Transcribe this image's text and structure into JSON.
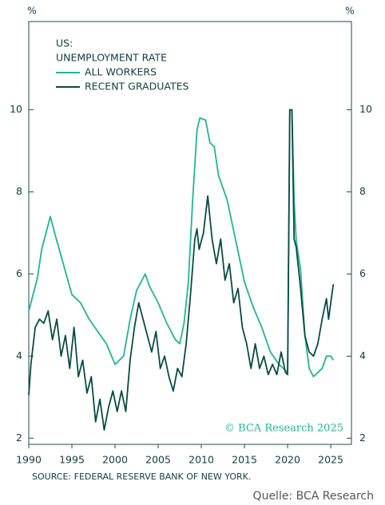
{
  "chart_data": {
    "type": "line",
    "title": "US:",
    "subtitle": "UNEMPLOYMENT RATE",
    "y_label": "%",
    "y2_label": "%",
    "annotation": "© BCΑ Research 2025",
    "source": "SOURCE: FEDERAL RESERVE BANK OF NEW YORK.",
    "credit": "Quelle: BCA Research",
    "xlim": [
      1990,
      2027.4
    ],
    "xticks": [
      1990,
      1995,
      2000,
      2005,
      2010,
      2015,
      2020,
      2025
    ],
    "ylim": [
      1.85,
      12.15
    ],
    "yticks": [
      2,
      4,
      6,
      8,
      10
    ],
    "y2lim": [
      1.85,
      12.15
    ],
    "y2ticks": [
      2,
      4,
      6,
      8,
      10
    ],
    "series": [
      {
        "name": "ALL WORKERS",
        "color": "#22b394",
        "x": [
          1990,
          1991,
          1991.5,
          1992.5,
          1993,
          1994,
          1995,
          1996,
          1997,
          1998,
          1999,
          2000,
          2001,
          2001.75,
          2002.5,
          2003.5,
          2004,
          2005,
          2006,
          2007,
          2007.5,
          2008,
          2008.5,
          2009,
          2009.5,
          2009.83,
          2010.5,
          2011,
          2011.5,
          2012,
          2013,
          2014,
          2015,
          2016,
          2017,
          2018,
          2019,
          2020,
          2020.25,
          2020.5,
          2020.75,
          2021,
          2021.5,
          2022,
          2022.5,
          2023,
          2024,
          2024.5,
          2025,
          2025.3
        ],
        "values": [
          5.1,
          5.9,
          6.6,
          7.4,
          7.0,
          6.25,
          5.5,
          5.3,
          4.9,
          4.6,
          4.3,
          3.8,
          4.0,
          4.9,
          5.6,
          6.0,
          5.7,
          5.3,
          4.8,
          4.4,
          4.3,
          4.8,
          5.8,
          7.8,
          9.5,
          9.8,
          9.75,
          9.2,
          9.1,
          8.4,
          7.8,
          6.8,
          5.8,
          5.2,
          4.7,
          4.1,
          3.8,
          3.6,
          10,
          10,
          7.8,
          6.8,
          6.1,
          4.5,
          3.7,
          3.5,
          3.7,
          4.0,
          4.0,
          3.9
        ]
      },
      {
        "name": "RECENT GRADUATES",
        "color": "#0b4a45",
        "x": [
          1990,
          1990.25,
          1990.75,
          1991.25,
          1991.75,
          1992.25,
          1992.75,
          1993.25,
          1993.75,
          1994.25,
          1994.75,
          1995.25,
          1995.75,
          1996.25,
          1996.75,
          1997.25,
          1997.75,
          1998.25,
          1998.75,
          1999.25,
          1999.75,
          2000.25,
          2000.75,
          2001.25,
          2001.75,
          2002.25,
          2002.75,
          2003.25,
          2003.75,
          2004.25,
          2004.75,
          2005.25,
          2005.75,
          2006.25,
          2006.75,
          2007.25,
          2007.75,
          2008.25,
          2008.75,
          2009.25,
          2009.5,
          2009.75,
          2010.25,
          2010.75,
          2011.25,
          2011.75,
          2012.25,
          2012.75,
          2013.25,
          2013.75,
          2014.25,
          2014.75,
          2015.25,
          2015.75,
          2016.25,
          2016.75,
          2017.25,
          2017.75,
          2018.25,
          2018.75,
          2019.25,
          2019.75,
          2020,
          2020.25,
          2020.5,
          2020.75,
          2021,
          2021.5,
          2022,
          2022.5,
          2023,
          2023.5,
          2024,
          2024.5,
          2024.75,
          2025,
          2025.3
        ],
        "values": [
          3.05,
          3.8,
          4.7,
          4.9,
          4.8,
          5.1,
          4.4,
          4.9,
          4.0,
          4.5,
          3.7,
          4.7,
          3.5,
          3.9,
          3.1,
          3.5,
          2.4,
          2.95,
          2.2,
          2.75,
          3.15,
          2.65,
          3.15,
          2.65,
          3.9,
          4.7,
          5.3,
          4.9,
          4.5,
          4.1,
          4.6,
          3.7,
          4.0,
          3.5,
          3.15,
          3.7,
          3.5,
          4.3,
          5.5,
          6.85,
          7.1,
          6.6,
          7.0,
          7.9,
          6.85,
          6.25,
          6.85,
          5.85,
          6.25,
          5.3,
          5.65,
          4.7,
          4.3,
          3.7,
          4.3,
          3.7,
          4.0,
          3.55,
          3.8,
          3.55,
          4.1,
          3.6,
          3.55,
          10,
          10,
          6.85,
          6.65,
          5.65,
          4.5,
          4.1,
          4.0,
          4.3,
          4.9,
          5.4,
          4.9,
          5.3,
          5.75
        ]
      }
    ]
  }
}
